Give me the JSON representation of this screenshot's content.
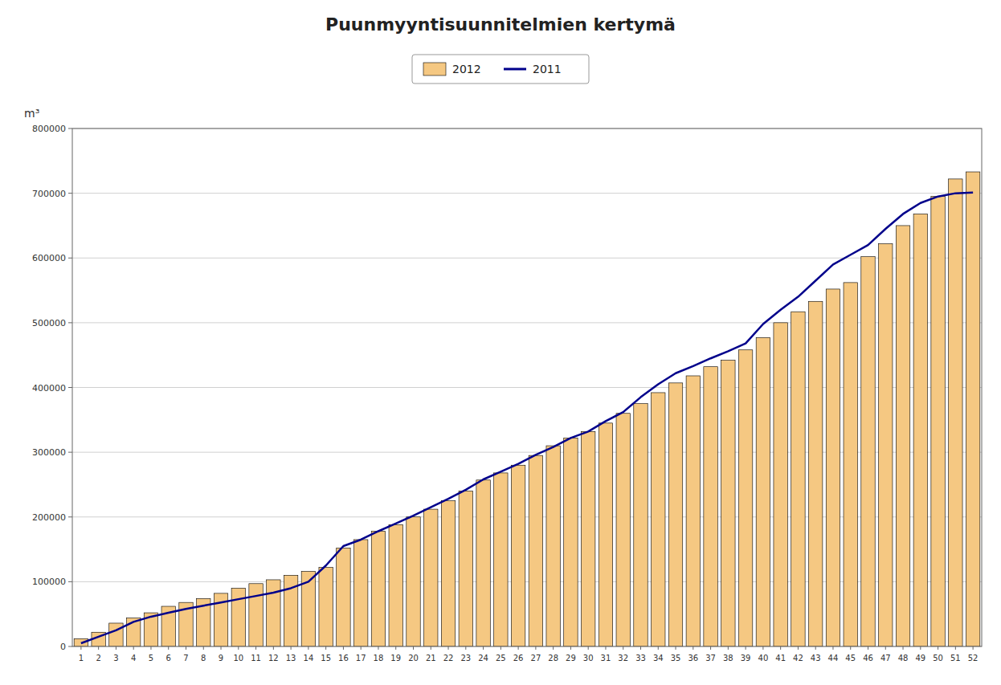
{
  "chart_data": {
    "type": "bar",
    "title": "Puunmyyntisuunnitelmien kertymä",
    "ylabel": "m³",
    "categories": [
      1,
      2,
      3,
      4,
      5,
      6,
      7,
      8,
      9,
      10,
      11,
      12,
      13,
      14,
      15,
      16,
      17,
      18,
      19,
      20,
      21,
      22,
      23,
      24,
      25,
      26,
      27,
      28,
      29,
      30,
      31,
      32,
      33,
      34,
      35,
      36,
      37,
      38,
      39,
      40,
      41,
      42,
      43,
      44,
      45,
      46,
      47,
      48,
      49,
      50,
      51,
      52
    ],
    "series": [
      {
        "name": "2012",
        "type": "bar",
        "color": "#F5C882",
        "values": [
          12000,
          22000,
          36000,
          44000,
          52000,
          62000,
          68000,
          74000,
          82000,
          90000,
          97000,
          103000,
          110000,
          116000,
          122000,
          152000,
          165000,
          178000,
          188000,
          200000,
          212000,
          225000,
          240000,
          257000,
          268000,
          280000,
          295000,
          310000,
          322000,
          332000,
          345000,
          360000,
          375000,
          392000,
          407000,
          418000,
          432000,
          442000,
          458000,
          477000,
          500000,
          517000,
          533000,
          552000,
          562000,
          602000,
          622000,
          650000,
          668000,
          695000,
          722000,
          733000
        ]
      },
      {
        "name": "2011",
        "type": "line",
        "color": "#00008B",
        "values": [
          5000,
          15000,
          25000,
          38000,
          46000,
          52000,
          58000,
          63000,
          68000,
          73000,
          78000,
          83000,
          90000,
          100000,
          125000,
          155000,
          165000,
          178000,
          190000,
          202000,
          215000,
          228000,
          242000,
          258000,
          270000,
          282000,
          296000,
          308000,
          322000,
          332000,
          348000,
          362000,
          385000,
          405000,
          422000,
          433000,
          445000,
          456000,
          468000,
          498000,
          520000,
          540000,
          565000,
          590000,
          605000,
          620000,
          645000,
          668000,
          685000,
          695000,
          700000,
          701000
        ]
      }
    ],
    "ylim": [
      0,
      800000
    ],
    "yticks": [
      0,
      100000,
      200000,
      300000,
      400000,
      500000,
      600000,
      700000,
      800000
    ],
    "grid": true,
    "legend": "top"
  }
}
